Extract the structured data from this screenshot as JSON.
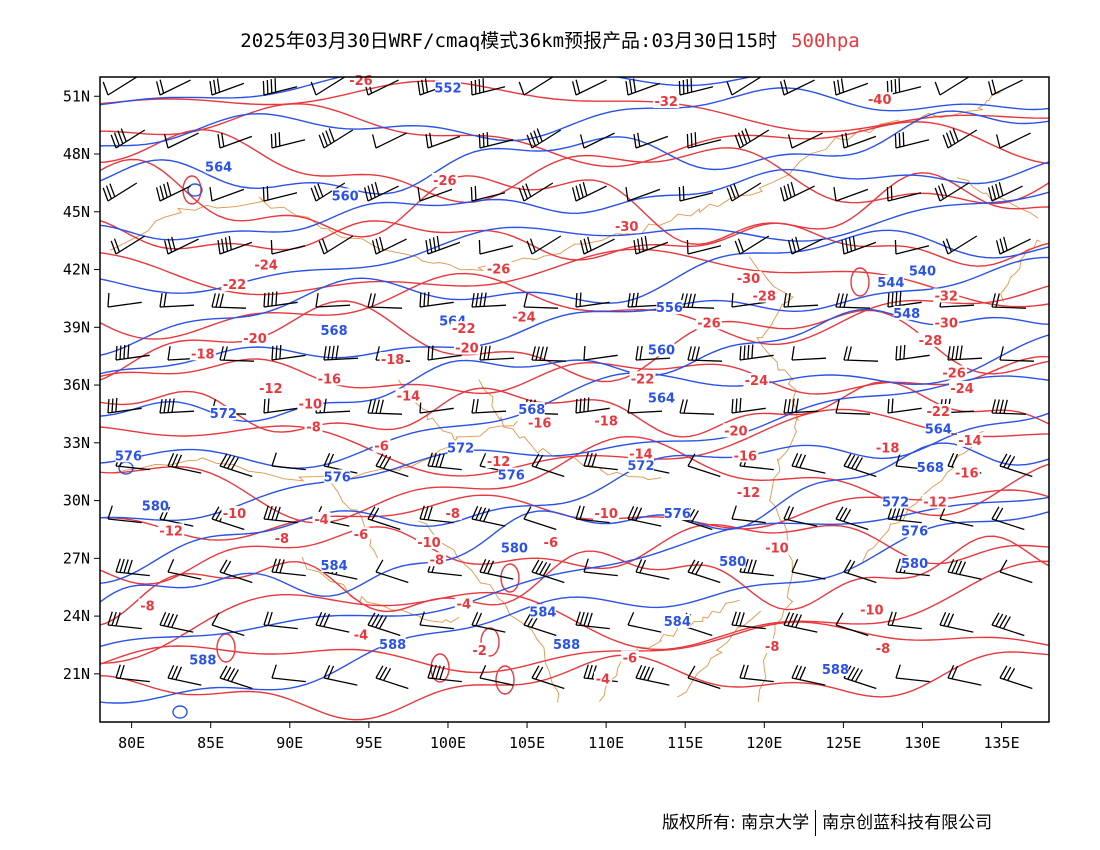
{
  "title": {
    "main": "2025年03月30日WRF/cmaq模式36km预报产品:03月30日15时",
    "level": "500hpa"
  },
  "axes": {
    "lon_labels": [
      "80E",
      "85E",
      "90E",
      "95E",
      "100E",
      "105E",
      "110E",
      "115E",
      "120E",
      "125E",
      "130E",
      "135E"
    ],
    "lon_values": [
      80,
      85,
      90,
      95,
      100,
      105,
      110,
      115,
      120,
      125,
      130,
      135
    ],
    "lat_labels": [
      "21N",
      "24N",
      "27N",
      "30N",
      "33N",
      "36N",
      "39N",
      "42N",
      "45N",
      "48N",
      "51N"
    ],
    "lat_values": [
      21,
      24,
      27,
      30,
      33,
      36,
      39,
      42,
      45,
      48,
      51
    ],
    "lon_range": [
      78,
      138
    ],
    "lat_range": [
      18.5,
      52
    ]
  },
  "colors": {
    "height": "#2a52e8",
    "temperature": "#e8383d",
    "coast": "#e2954a",
    "wind": "#000000"
  },
  "height_labels": [
    {
      "v": "552",
      "lon": 100,
      "lat": 51.4
    },
    {
      "v": "564",
      "lon": 85.5,
      "lat": 47.3
    },
    {
      "v": "560",
      "lon": 93.5,
      "lat": 45.8
    },
    {
      "v": "564",
      "lon": 100.3,
      "lat": 39.3
    },
    {
      "v": "568",
      "lon": 92.8,
      "lat": 38.8
    },
    {
      "v": "572",
      "lon": 85.8,
      "lat": 34.5
    },
    {
      "v": "576",
      "lon": 79.8,
      "lat": 32.3
    },
    {
      "v": "580",
      "lon": 81.5,
      "lat": 29.7
    },
    {
      "v": "576",
      "lon": 93,
      "lat": 31.2
    },
    {
      "v": "572",
      "lon": 100.8,
      "lat": 32.7
    },
    {
      "v": "576",
      "lon": 104,
      "lat": 31.3
    },
    {
      "v": "584",
      "lon": 92.8,
      "lat": 26.6
    },
    {
      "v": "588",
      "lon": 96.5,
      "lat": 22.5
    },
    {
      "v": "588",
      "lon": 84.5,
      "lat": 21.7
    },
    {
      "v": "580",
      "lon": 104.2,
      "lat": 27.5
    },
    {
      "v": "568",
      "lon": 105.3,
      "lat": 34.7
    },
    {
      "v": "564",
      "lon": 113.5,
      "lat": 35.3
    },
    {
      "v": "560",
      "lon": 113.5,
      "lat": 37.8
    },
    {
      "v": "556",
      "lon": 114,
      "lat": 40
    },
    {
      "v": "572",
      "lon": 112.2,
      "lat": 31.8
    },
    {
      "v": "576",
      "lon": 114.5,
      "lat": 29.3
    },
    {
      "v": "580",
      "lon": 118,
      "lat": 26.8
    },
    {
      "v": "584",
      "lon": 114.5,
      "lat": 23.7
    },
    {
      "v": "588",
      "lon": 107.5,
      "lat": 22.5
    },
    {
      "v": "544",
      "lon": 128,
      "lat": 41.3
    },
    {
      "v": "540",
      "lon": 130,
      "lat": 41.9
    },
    {
      "v": "548",
      "lon": 129,
      "lat": 39.7
    },
    {
      "v": "564",
      "lon": 131,
      "lat": 33.7
    },
    {
      "v": "568",
      "lon": 130.5,
      "lat": 31.7
    },
    {
      "v": "572",
      "lon": 128.3,
      "lat": 29.9
    },
    {
      "v": "576",
      "lon": 129.5,
      "lat": 28.4
    },
    {
      "v": "580",
      "lon": 129.5,
      "lat": 26.7
    },
    {
      "v": "588",
      "lon": 124.5,
      "lat": 21.2
    },
    {
      "v": "584",
      "lon": 106,
      "lat": 24.2
    }
  ],
  "temp_labels": [
    {
      "v": "-26",
      "lon": 94.5,
      "lat": 51.8
    },
    {
      "v": "-26",
      "lon": 99.8,
      "lat": 46.6
    },
    {
      "v": "-32",
      "lon": 113.8,
      "lat": 50.7
    },
    {
      "v": "-40",
      "lon": 127.3,
      "lat": 50.8
    },
    {
      "v": "-30",
      "lon": 111.3,
      "lat": 44.2
    },
    {
      "v": "-24",
      "lon": 88.5,
      "lat": 42.2
    },
    {
      "v": "-22",
      "lon": 86.5,
      "lat": 41.2
    },
    {
      "v": "-26",
      "lon": 103.2,
      "lat": 42
    },
    {
      "v": "-24",
      "lon": 104.8,
      "lat": 39.5
    },
    {
      "v": "-22",
      "lon": 101,
      "lat": 38.9
    },
    {
      "v": "-20",
      "lon": 101.2,
      "lat": 37.9
    },
    {
      "v": "-20",
      "lon": 87.8,
      "lat": 38.4
    },
    {
      "v": "-18",
      "lon": 84.5,
      "lat": 37.6
    },
    {
      "v": "-18",
      "lon": 96.5,
      "lat": 37.3
    },
    {
      "v": "-16",
      "lon": 92.5,
      "lat": 36.3
    },
    {
      "v": "-14",
      "lon": 97.5,
      "lat": 35.4
    },
    {
      "v": "-12",
      "lon": 88.8,
      "lat": 35.8
    },
    {
      "v": "-10",
      "lon": 91.3,
      "lat": 35
    },
    {
      "v": "-8",
      "lon": 91.5,
      "lat": 33.8
    },
    {
      "v": "-6",
      "lon": 95.8,
      "lat": 32.8
    },
    {
      "v": "-16",
      "lon": 105.8,
      "lat": 34
    },
    {
      "v": "-18",
      "lon": 110,
      "lat": 34.1
    },
    {
      "v": "-22",
      "lon": 112.3,
      "lat": 36.3
    },
    {
      "v": "-24",
      "lon": 119.5,
      "lat": 36.2
    },
    {
      "v": "-26",
      "lon": 116.5,
      "lat": 39.2
    },
    {
      "v": "-28",
      "lon": 120,
      "lat": 40.6
    },
    {
      "v": "-30",
      "lon": 119,
      "lat": 41.5
    },
    {
      "v": "-20",
      "lon": 118.2,
      "lat": 33.6
    },
    {
      "v": "-14",
      "lon": 112.2,
      "lat": 32.4
    },
    {
      "v": "-16",
      "lon": 118.8,
      "lat": 32.3
    },
    {
      "v": "-12",
      "lon": 103.2,
      "lat": 32
    },
    {
      "v": "-12",
      "lon": 119,
      "lat": 30.4
    },
    {
      "v": "-10",
      "lon": 110,
      "lat": 29.3
    },
    {
      "v": "-10",
      "lon": 120.8,
      "lat": 27.5
    },
    {
      "v": "-10",
      "lon": 86.5,
      "lat": 29.3
    },
    {
      "v": "-12",
      "lon": 82.5,
      "lat": 28.4
    },
    {
      "v": "-8",
      "lon": 100.3,
      "lat": 29.3
    },
    {
      "v": "-10",
      "lon": 98.8,
      "lat": 27.8
    },
    {
      "v": "-8",
      "lon": 99.3,
      "lat": 26.9
    },
    {
      "v": "-8",
      "lon": 89.5,
      "lat": 28
    },
    {
      "v": "-4",
      "lon": 92,
      "lat": 29
    },
    {
      "v": "-6",
      "lon": 94.5,
      "lat": 28.2
    },
    {
      "v": "-6",
      "lon": 106.5,
      "lat": 27.8
    },
    {
      "v": "-4",
      "lon": 101,
      "lat": 24.6
    },
    {
      "v": "-4",
      "lon": 94.5,
      "lat": 23
    },
    {
      "v": "-2",
      "lon": 102,
      "lat": 22.2
    },
    {
      "v": "-4",
      "lon": 109.8,
      "lat": 20.7
    },
    {
      "v": "-6",
      "lon": 111.5,
      "lat": 21.8
    },
    {
      "v": "-8",
      "lon": 120.5,
      "lat": 22.4
    },
    {
      "v": "-10",
      "lon": 126.8,
      "lat": 24.3
    },
    {
      "v": "-8",
      "lon": 127.5,
      "lat": 22.3
    },
    {
      "v": "-12",
      "lon": 130.8,
      "lat": 29.9
    },
    {
      "v": "-16",
      "lon": 132.8,
      "lat": 31.4
    },
    {
      "v": "-14",
      "lon": 133,
      "lat": 33.1
    },
    {
      "v": "-18",
      "lon": 127.8,
      "lat": 32.7
    },
    {
      "v": "-22",
      "lon": 131,
      "lat": 34.6
    },
    {
      "v": "-24",
      "lon": 132.5,
      "lat": 35.8
    },
    {
      "v": "-26",
      "lon": 132,
      "lat": 36.6
    },
    {
      "v": "-28",
      "lon": 130.5,
      "lat": 38.3
    },
    {
      "v": "-30",
      "lon": 131.5,
      "lat": 39.2
    },
    {
      "v": "-32",
      "lon": 131.5,
      "lat": 40.6
    },
    {
      "v": "-8",
      "lon": 81,
      "lat": 24.5
    }
  ],
  "footer": {
    "left": "版权所有: 南京大学",
    "right": "南京创蓝科技有限公司"
  }
}
